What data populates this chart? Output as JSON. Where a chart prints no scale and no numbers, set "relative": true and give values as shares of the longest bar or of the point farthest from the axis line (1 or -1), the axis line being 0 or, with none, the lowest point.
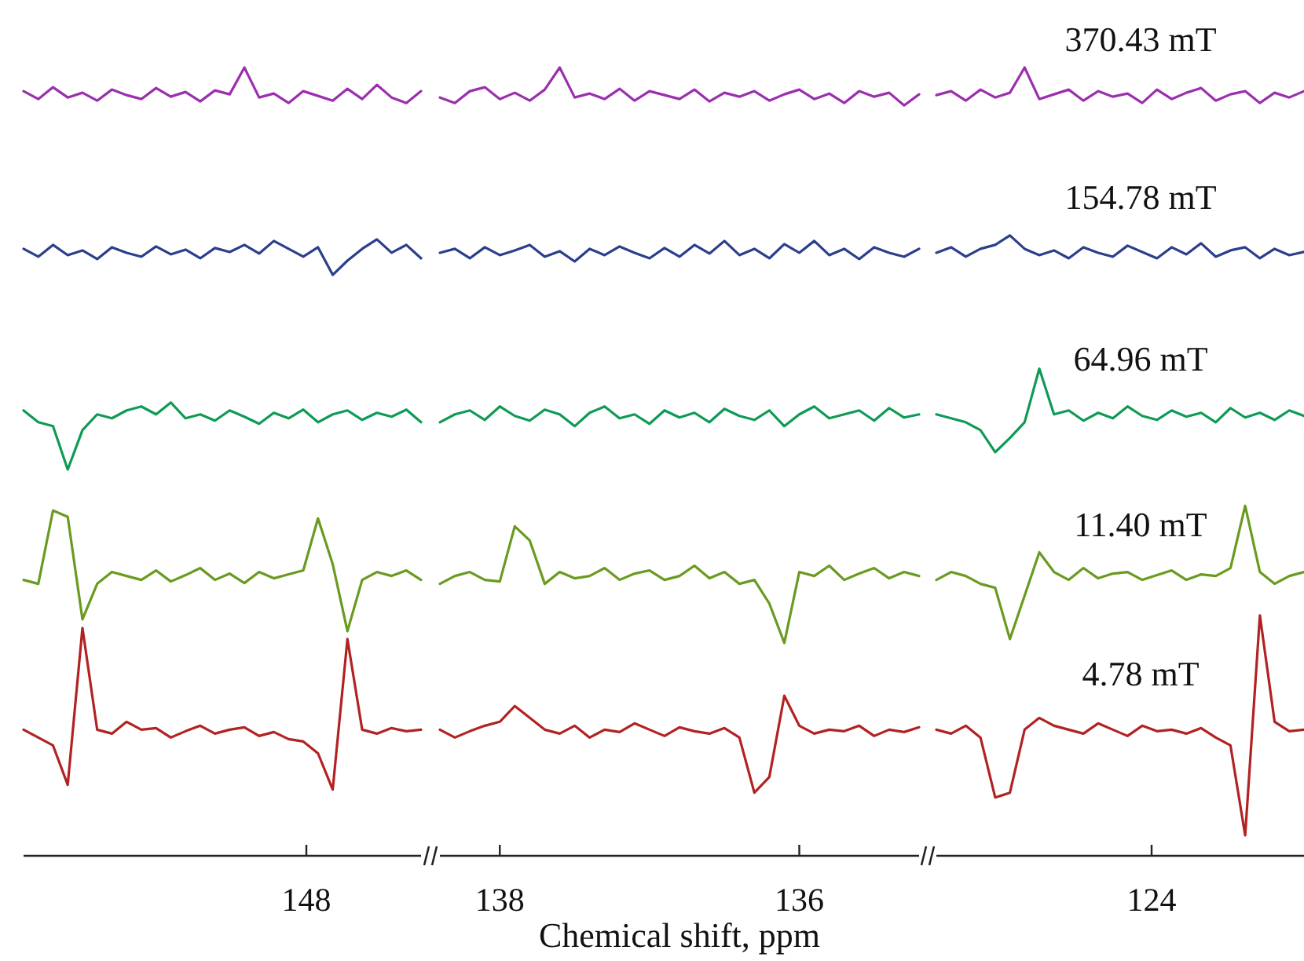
{
  "chart_data": [
    {
      "type": "line",
      "relative": true,
      "categories": [
        null,
        null,
        null,
        null,
        null,
        null,
        null,
        null,
        null,
        null,
        null,
        null,
        null,
        null,
        null,
        null,
        null,
        null,
        null,
        null,
        null,
        null,
        null,
        null,
        null,
        null,
        null,
        null
      ],
      "annotations": [
        "148"
      ],
      "series": [
        {
          "color": "#9b2fae",
          "values": [
            0.97,
            0.96,
            0.975,
            0.962,
            0.968,
            0.958,
            0.972,
            0.965,
            0.96,
            0.974,
            0.963,
            0.969,
            0.957,
            0.971,
            0.966,
            1,
            0.962,
            0.967,
            0.955,
            0.97,
            0.964,
            0.958,
            0.973,
            0.96,
            0.978,
            0.962,
            0.955,
            0.97
          ]
        },
        {
          "color": "#2b3f8c",
          "values": [
            0.77,
            0.76,
            0.775,
            0.762,
            0.768,
            0.757,
            0.772,
            0.765,
            0.76,
            0.773,
            0.763,
            0.769,
            0.758,
            0.771,
            0.766,
            0.775,
            0.764,
            0.78,
            0.77,
            0.76,
            0.772,
            0.737,
            0.755,
            0.77,
            0.782,
            0.765,
            0.775,
            0.758
          ]
        },
        {
          "color": "#0f9a55",
          "values": [
            0.565,
            0.55,
            0.545,
            0.49,
            0.54,
            0.56,
            0.555,
            0.565,
            0.57,
            0.56,
            0.575,
            0.555,
            0.56,
            0.552,
            0.565,
            0.557,
            0.548,
            0.562,
            0.555,
            0.566,
            0.55,
            0.56,
            0.565,
            0.553,
            0.562,
            0.557,
            0.566,
            0.55
          ]
        },
        {
          "color": "#6a9a1f",
          "values": [
            0.35,
            0.345,
            0.438,
            0.43,
            0.3,
            0.345,
            0.36,
            0.355,
            0.35,
            0.362,
            0.348,
            0.356,
            0.365,
            0.35,
            0.358,
            0.346,
            0.36,
            0.352,
            0.357,
            0.362,
            0.428,
            0.37,
            0.285,
            0.35,
            0.36,
            0.355,
            0.362,
            0.35
          ]
        },
        {
          "color": "#b22222",
          "values": [
            0.16,
            0.15,
            0.14,
            0.09,
            0.289,
            0.16,
            0.155,
            0.17,
            0.16,
            0.162,
            0.15,
            0.158,
            0.165,
            0.155,
            0.16,
            0.163,
            0.152,
            0.157,
            0.148,
            0.145,
            0.13,
            0.084,
            0.275,
            0.16,
            0.155,
            0.162,
            0.158,
            0.16
          ]
        }
      ]
    },
    {
      "type": "line",
      "relative": true,
      "xlabel": "Chemical shift, ppm",
      "x": [
        138.4,
        138.3,
        138.2,
        138.1,
        138.0,
        137.9,
        137.8,
        137.7,
        137.6,
        137.5,
        137.4,
        137.3,
        137.2,
        137.1,
        137.0,
        136.9,
        136.8,
        136.7,
        136.6,
        136.5,
        136.4,
        136.3,
        136.2,
        136.1,
        136.0,
        135.9,
        135.8,
        135.7,
        135.6,
        135.5,
        135.4,
        135.3,
        135.2
      ],
      "xlim": [
        138.4,
        135.2
      ],
      "xticks": [
        138,
        136
      ],
      "series": [
        {
          "color": "#9b2fae",
          "values": [
            0.962,
            0.955,
            0.97,
            0.975,
            0.96,
            0.968,
            0.958,
            0.972,
            1,
            0.962,
            0.967,
            0.96,
            0.973,
            0.958,
            0.97,
            0.965,
            0.96,
            0.972,
            0.957,
            0.968,
            0.963,
            0.97,
            0.958,
            0.966,
            0.972,
            0.96,
            0.967,
            0.955,
            0.97,
            0.963,
            0.968,
            0.952,
            0.966
          ]
        },
        {
          "color": "#2b3f8c",
          "values": [
            0.765,
            0.77,
            0.758,
            0.772,
            0.762,
            0.768,
            0.775,
            0.76,
            0.767,
            0.754,
            0.77,
            0.762,
            0.773,
            0.765,
            0.758,
            0.771,
            0.76,
            0.775,
            0.764,
            0.78,
            0.762,
            0.77,
            0.758,
            0.776,
            0.765,
            0.78,
            0.762,
            0.77,
            0.757,
            0.772,
            0.765,
            0.76,
            0.77
          ]
        },
        {
          "color": "#0f9a55",
          "values": [
            0.55,
            0.56,
            0.565,
            0.553,
            0.57,
            0.558,
            0.552,
            0.566,
            0.56,
            0.545,
            0.562,
            0.57,
            0.555,
            0.56,
            0.548,
            0.565,
            0.556,
            0.562,
            0.55,
            0.567,
            0.558,
            0.553,
            0.565,
            0.545,
            0.56,
            0.57,
            0.555,
            0.56,
            0.565,
            0.552,
            0.568,
            0.556,
            0.56
          ]
        },
        {
          "color": "#6a9a1f",
          "values": [
            0.345,
            0.355,
            0.36,
            0.35,
            0.348,
            0.418,
            0.4,
            0.345,
            0.36,
            0.352,
            0.355,
            0.365,
            0.35,
            0.358,
            0.362,
            0.35,
            0.355,
            0.368,
            0.352,
            0.36,
            0.345,
            0.35,
            0.32,
            0.27,
            0.36,
            0.355,
            0.368,
            0.35,
            0.358,
            0.365,
            0.352,
            0.36,
            0.355
          ]
        },
        {
          "color": "#b22222",
          "values": [
            0.16,
            0.15,
            0.158,
            0.165,
            0.17,
            0.19,
            0.175,
            0.16,
            0.155,
            0.165,
            0.15,
            0.16,
            0.157,
            0.168,
            0.16,
            0.152,
            0.163,
            0.158,
            0.155,
            0.162,
            0.15,
            0.08,
            0.1,
            0.203,
            0.165,
            0.155,
            0.16,
            0.158,
            0.165,
            0.152,
            0.16,
            0.157,
            0.163
          ]
        }
      ]
    },
    {
      "type": "line",
      "relative": true,
      "categories": [
        null,
        null,
        null,
        null,
        null,
        null,
        null,
        null,
        null,
        null,
        null,
        null,
        null,
        null,
        null,
        null,
        null,
        null,
        null,
        null,
        null,
        null,
        null,
        null,
        null,
        null
      ],
      "annotations": [
        "124"
      ],
      "series": [
        {
          "name": "370.43 mT",
          "color": "#9b2fae",
          "values": [
            0.965,
            0.97,
            0.958,
            0.972,
            0.962,
            0.968,
            1,
            0.96,
            0.966,
            0.972,
            0.958,
            0.97,
            0.963,
            0.967,
            0.955,
            0.972,
            0.96,
            0.968,
            0.974,
            0.958,
            0.966,
            0.97,
            0.955,
            0.968,
            0.962,
            0.97
          ]
        },
        {
          "name": "154.78 mT",
          "color": "#2b3f8c",
          "values": [
            0.765,
            0.772,
            0.76,
            0.77,
            0.775,
            0.787,
            0.77,
            0.762,
            0.768,
            0.758,
            0.772,
            0.765,
            0.76,
            0.774,
            0.766,
            0.758,
            0.772,
            0.763,
            0.777,
            0.76,
            0.768,
            0.772,
            0.758,
            0.77,
            0.762,
            0.766
          ]
        },
        {
          "name": "64.96 mT",
          "color": "#0f9a55",
          "values": [
            0.56,
            0.555,
            0.55,
            0.54,
            0.512,
            0.53,
            0.55,
            0.618,
            0.56,
            0.565,
            0.552,
            0.562,
            0.555,
            0.57,
            0.558,
            0.553,
            0.565,
            0.557,
            0.562,
            0.55,
            0.568,
            0.556,
            0.562,
            0.553,
            0.565,
            0.558
          ]
        },
        {
          "name": "11.40 mT",
          "color": "#6a9a1f",
          "values": [
            0.35,
            0.36,
            0.355,
            0.345,
            0.34,
            0.275,
            0.33,
            0.385,
            0.36,
            0.35,
            0.365,
            0.352,
            0.358,
            0.36,
            0.35,
            0.356,
            0.362,
            0.35,
            0.357,
            0.355,
            0.365,
            0.444,
            0.36,
            0.345,
            0.355,
            0.36
          ]
        },
        {
          "name": "4.78 mT",
          "color": "#b22222",
          "values": [
            0.16,
            0.155,
            0.165,
            0.15,
            0.074,
            0.08,
            0.16,
            0.175,
            0.165,
            0.16,
            0.155,
            0.168,
            0.16,
            0.152,
            0.165,
            0.158,
            0.16,
            0.155,
            0.162,
            0.15,
            0.14,
            0.026,
            0.305,
            0.17,
            0.158,
            0.16
          ]
        }
      ]
    }
  ]
}
